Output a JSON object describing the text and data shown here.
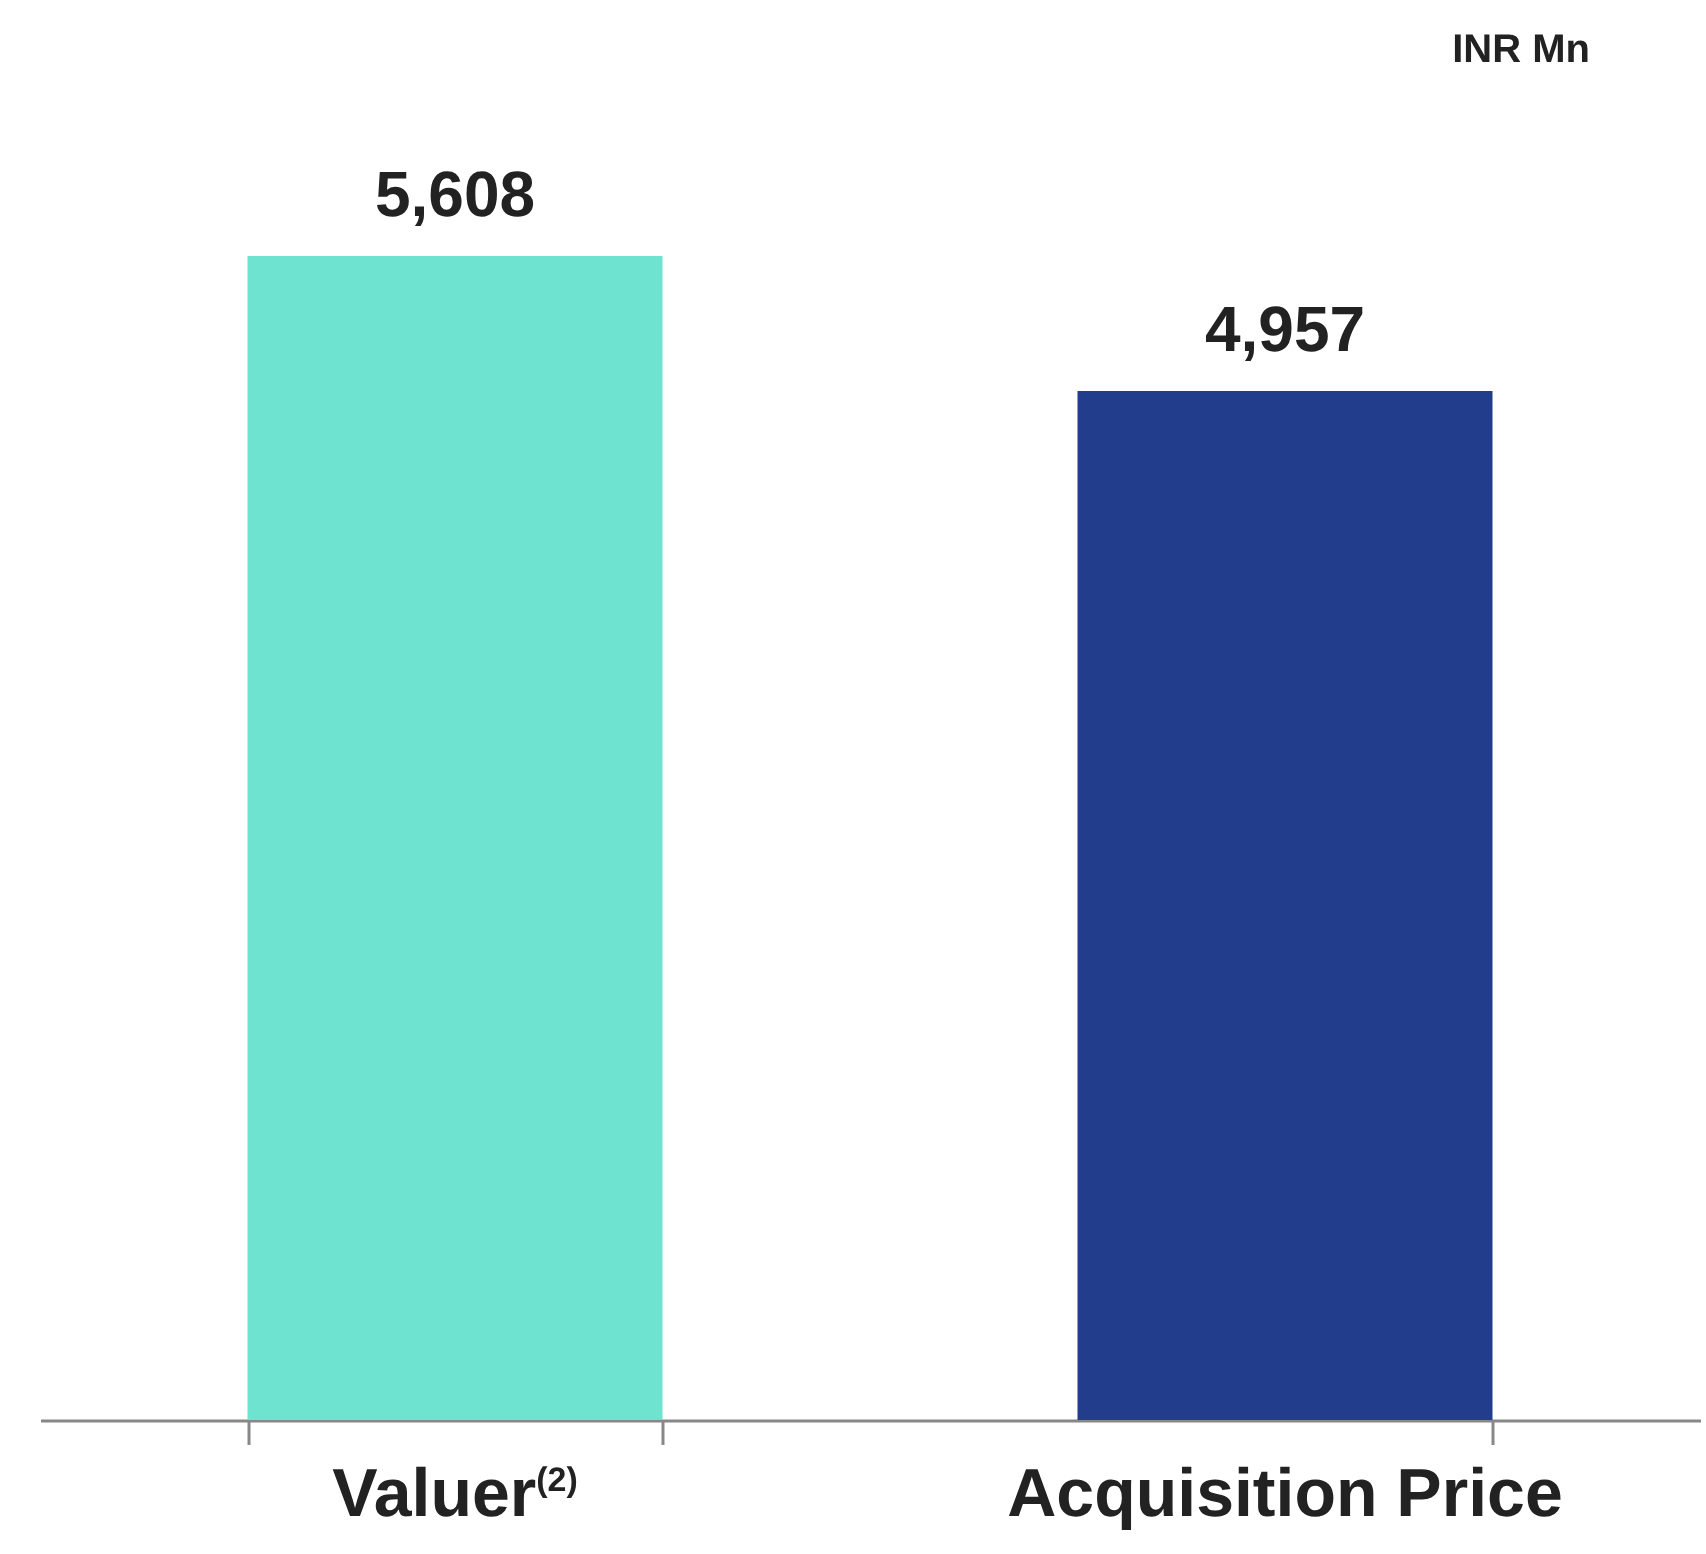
{
  "chart_data": {
    "type": "bar",
    "ylabel": "INR Mn",
    "categories": [
      "Valuer$^{(2)}$",
      "Acquisition Price"
    ],
    "values": [
      5608,
      4957
    ],
    "value_labels": [
      "5,608",
      "4,957"
    ],
    "colors": [
      "#6ee3d0",
      "#213d8b"
    ]
  }
}
